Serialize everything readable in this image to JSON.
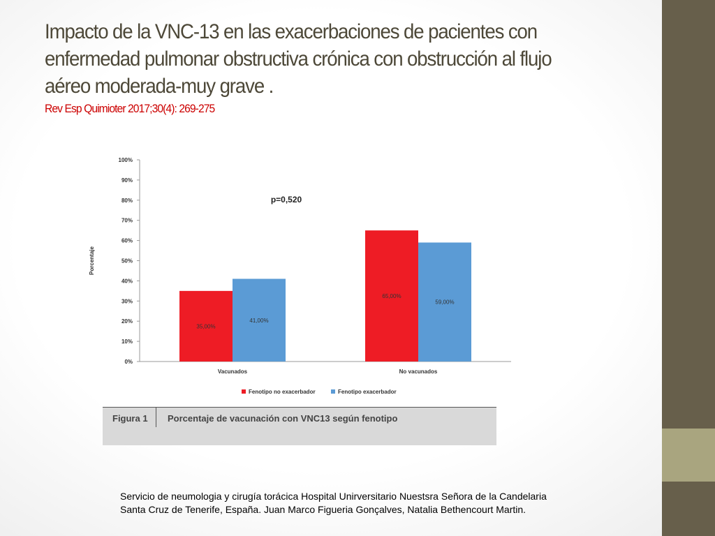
{
  "slide": {
    "title": "Impacto de la VNC-13 en las exacerbaciones de pacientes con enfermedad pulmonar obstructiva crónica con obstrucción al flujo aéreo moderada-muy grave .",
    "citation": "Rev Esp Quimioter 2017;30(4): 269-275",
    "footer_line1": "Servicio de neumologia y cirugía torácica Hospital Unirversitario Nuestsra Señora de la Candelaria",
    "footer_line2": "Santa Cruz de Tenerife, España.  Juan Marco Figueria Gonçalves,  Natalia Bethencourt Martin."
  },
  "figure": {
    "number": "Figura 1",
    "caption": "Porcentaje de vacunación con VNC13 según fenotipo"
  },
  "colors": {
    "sidebar": "#675f4b",
    "sidebar_accent": "#a9a57f",
    "series_red": "#ee1c25",
    "series_blue": "#5b9bd5",
    "title_text": "#4d4838",
    "citation_text": "#cc0000"
  },
  "chart_data": {
    "type": "bar",
    "categories": [
      "Vacunados",
      "No vacunados"
    ],
    "series": [
      {
        "name": "Fenotipo no exacerbador",
        "color": "#ee1c25",
        "values": [
          35,
          65
        ],
        "labels": [
          "35,00%",
          "65,00%"
        ]
      },
      {
        "name": "Fenotipo exacerbador",
        "color": "#5b9bd5",
        "values": [
          41,
          59
        ],
        "labels": [
          "41,00%",
          "59,00%"
        ]
      }
    ],
    "ylabel": "Porcentaje",
    "ylim": [
      0,
      100
    ],
    "yticks": [
      "0%",
      "10%",
      "20%",
      "30%",
      "40%",
      "50%",
      "60%",
      "70%",
      "80%",
      "90%",
      "100%"
    ],
    "annotation": "p=0,520",
    "legend_position": "bottom"
  }
}
